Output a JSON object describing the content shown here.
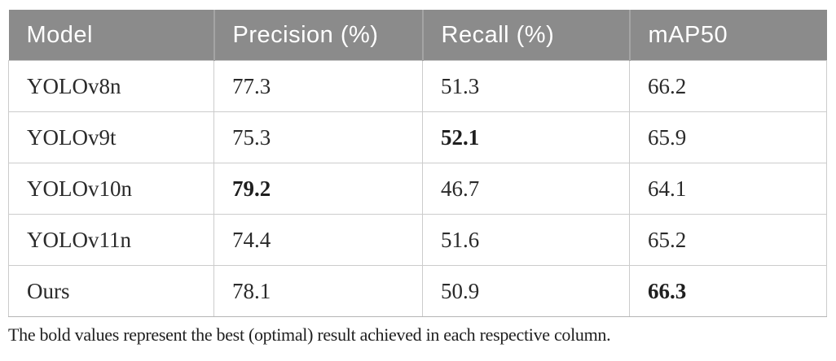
{
  "table": {
    "columns": [
      {
        "label": "Model"
      },
      {
        "label": "Precision (%)"
      },
      {
        "label": "Recall (%)"
      },
      {
        "label": "mAP50"
      }
    ],
    "rows": [
      {
        "cells": [
          "YOLOv8n",
          "77.3",
          "51.3",
          "66.2"
        ],
        "bold": [
          false,
          false,
          false,
          false
        ]
      },
      {
        "cells": [
          "YOLOv9t",
          "75.3",
          "52.1",
          "65.9"
        ],
        "bold": [
          false,
          false,
          true,
          false
        ]
      },
      {
        "cells": [
          "YOLOv10n",
          "79.2",
          "46.7",
          "64.1"
        ],
        "bold": [
          false,
          true,
          false,
          false
        ]
      },
      {
        "cells": [
          "YOLOv11n",
          "74.4",
          "51.6",
          "65.2"
        ],
        "bold": [
          false,
          false,
          false,
          false
        ]
      },
      {
        "cells": [
          "Ours",
          "78.1",
          "50.9",
          "66.3"
        ],
        "bold": [
          false,
          false,
          false,
          true
        ]
      }
    ]
  },
  "footnote": "The bold values represent the best (optimal) result achieved in each respective column.",
  "colors": {
    "header_background": "#8b8b8b",
    "header_text": "#ffffff",
    "body_border": "#cccccc",
    "body_text": "#2a2a2a"
  }
}
